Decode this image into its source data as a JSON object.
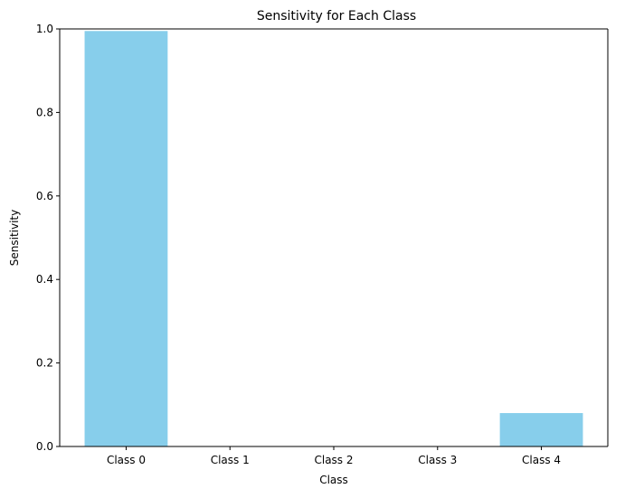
{
  "chart_data": {
    "type": "bar",
    "title": "Sensitivity for Each Class",
    "xlabel": "Class",
    "ylabel": "Sensitivity",
    "categories": [
      "Class 0",
      "Class 1",
      "Class 2",
      "Class 3",
      "Class 4"
    ],
    "values": [
      0.995,
      0.0,
      0.0,
      0.0,
      0.08
    ],
    "ylim": [
      0,
      1.0
    ],
    "yticks": [
      0.0,
      0.2,
      0.4,
      0.6,
      0.8,
      1.0
    ],
    "ytick_labels": [
      "0.0",
      "0.2",
      "0.4",
      "0.6",
      "0.8",
      "1.0"
    ],
    "grid": false,
    "bar_color": "#87CEEB"
  }
}
